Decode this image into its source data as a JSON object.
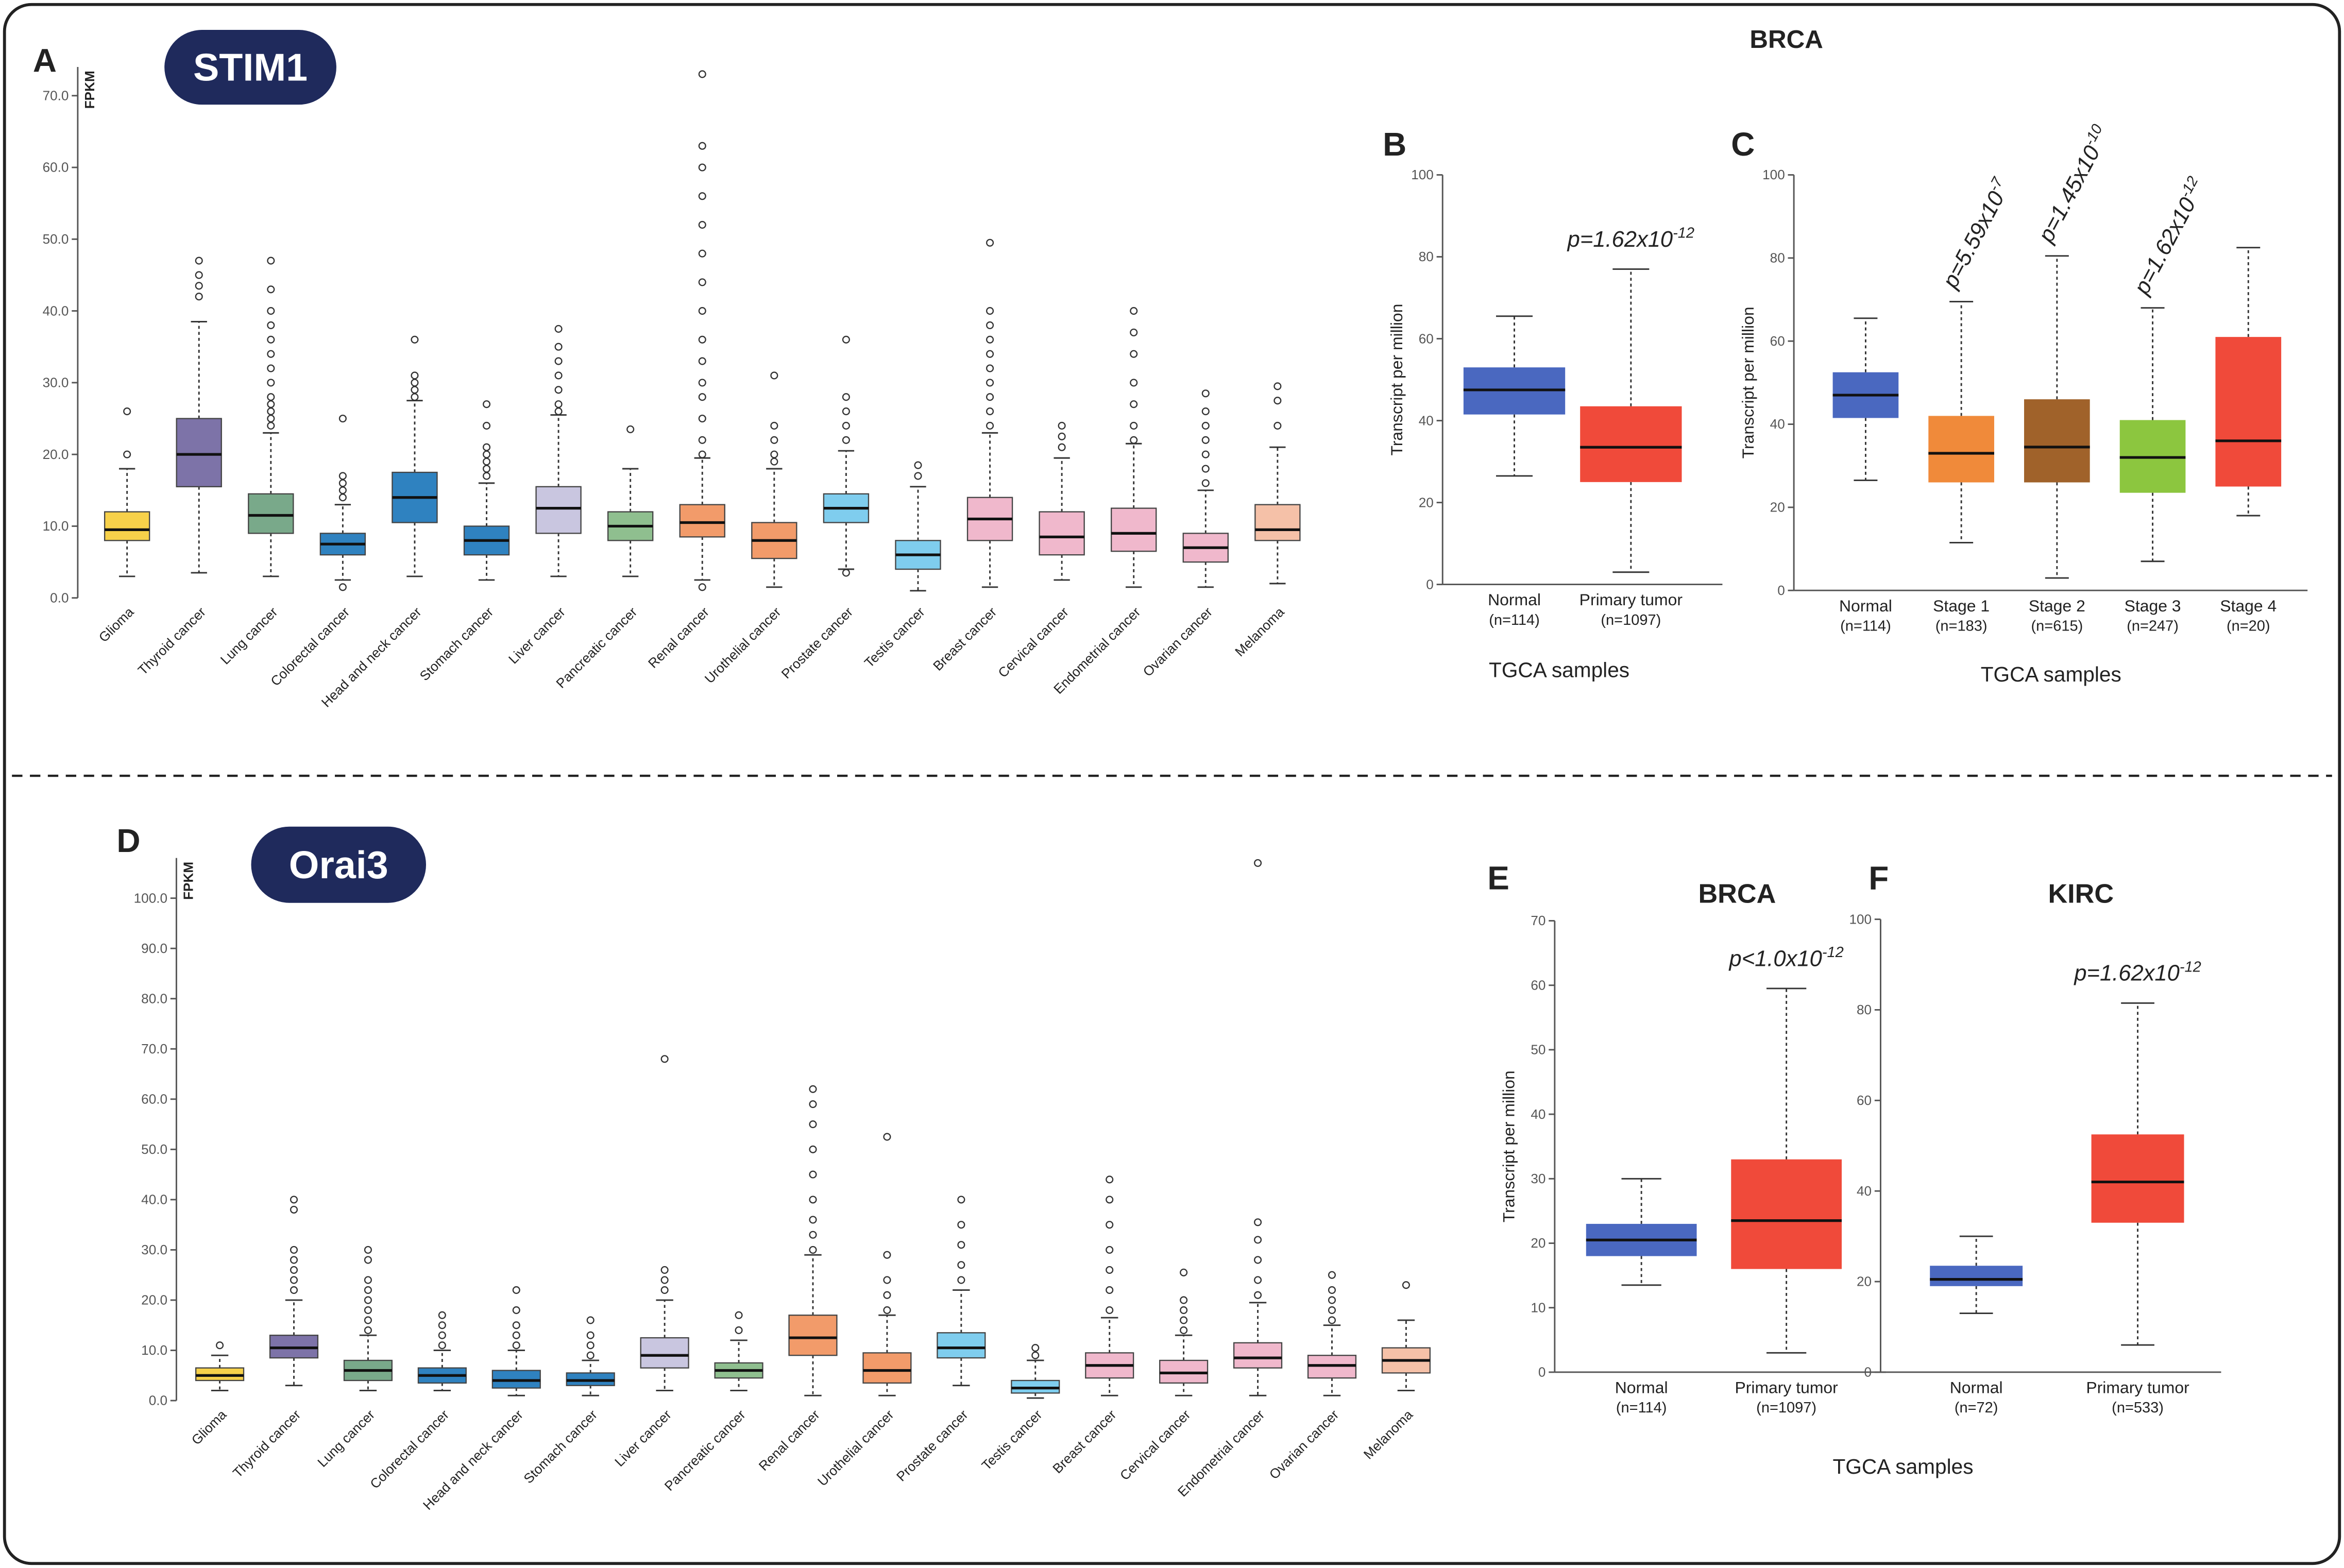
{
  "header": "BRCA",
  "chart_data": [
    {
      "type": "box",
      "panel": "A",
      "gene": "STIM1",
      "ylabel": "FPKM",
      "ylim": [
        0,
        74
      ],
      "yticks": [
        {
          "value": 0,
          "label": "0.0"
        },
        {
          "value": 10,
          "label": "10.0"
        },
        {
          "value": 20,
          "label": "20.0"
        },
        {
          "value": 30,
          "label": "30.0"
        },
        {
          "value": 40,
          "label": "40.0"
        },
        {
          "value": 50,
          "label": "50.0"
        },
        {
          "value": 60,
          "label": "60.0"
        },
        {
          "value": 70,
          "label": "70.0"
        }
      ],
      "categories": [
        "Glioma",
        "Thyroid cancer",
        "Lung cancer",
        "Colorectal cancer",
        "Head and neck cancer",
        "Stomach cancer",
        "Liver cancer",
        "Pancreatic cancer",
        "Renal cancer",
        "Urothelial cancer",
        "Prostate cancer",
        "Testis cancer",
        "Breast cancer",
        "Cervical cancer",
        "Endometrial cancer",
        "Ovarian cancer",
        "Melanoma"
      ],
      "boxes": [
        {
          "min": 3,
          "q1": 8,
          "median": 9.5,
          "q3": 12,
          "max": 18,
          "outliers": [
            20,
            26
          ],
          "color": "#f7d14a"
        },
        {
          "min": 3.5,
          "q1": 15.5,
          "median": 20,
          "q3": 25,
          "max": 38.5,
          "outliers": [
            42,
            43.5,
            45,
            47
          ],
          "color": "#7d73a8"
        },
        {
          "min": 3,
          "q1": 9,
          "median": 11.5,
          "q3": 14.5,
          "max": 23,
          "outliers": [
            24,
            25,
            26,
            27,
            28,
            30,
            32,
            34,
            36,
            38,
            40,
            43,
            47
          ],
          "color": "#79a98a"
        },
        {
          "min": 2.5,
          "q1": 6,
          "median": 7.5,
          "q3": 9,
          "max": 13,
          "outliers": [
            1.5,
            14,
            15,
            16,
            17,
            25
          ],
          "color": "#2f82c0"
        },
        {
          "min": 3,
          "q1": 10.5,
          "median": 14,
          "q3": 17.5,
          "max": 27.5,
          "outliers": [
            28,
            29,
            30,
            31,
            36
          ],
          "color": "#2f82c0"
        },
        {
          "min": 2.5,
          "q1": 6,
          "median": 8,
          "q3": 10,
          "max": 16,
          "outliers": [
            17,
            18,
            19,
            20,
            21,
            24,
            27
          ],
          "color": "#2f82c0"
        },
        {
          "min": 3,
          "q1": 9,
          "median": 12.5,
          "q3": 15.5,
          "max": 25.5,
          "outliers": [
            26,
            27,
            29,
            31,
            33,
            35,
            37.5
          ],
          "color": "#c9c6e0"
        },
        {
          "min": 3,
          "q1": 8,
          "median": 10,
          "q3": 12,
          "max": 18,
          "outliers": [
            23.5
          ],
          "color": "#8fbf8f"
        },
        {
          "min": 2.5,
          "q1": 8.5,
          "median": 10.5,
          "q3": 13,
          "max": 19.5,
          "outliers": [
            1.5,
            20,
            22,
            25,
            28,
            30,
            33,
            36,
            40,
            44,
            48,
            52,
            56,
            60,
            63,
            73
          ],
          "color": "#f29b6a"
        },
        {
          "min": 1.5,
          "q1": 5.5,
          "median": 8,
          "q3": 10.5,
          "max": 18,
          "outliers": [
            19,
            20,
            22,
            24,
            31
          ],
          "color": "#f29b6a"
        },
        {
          "min": 4,
          "q1": 10.5,
          "median": 12.5,
          "q3": 14.5,
          "max": 20.5,
          "outliers": [
            3.5,
            22,
            24,
            26,
            28,
            36
          ],
          "color": "#7fcdee"
        },
        {
          "min": 1,
          "q1": 4,
          "median": 6,
          "q3": 8,
          "max": 15.5,
          "outliers": [
            17,
            18.5
          ],
          "color": "#7fcdee"
        },
        {
          "min": 1.5,
          "q1": 8,
          "median": 11,
          "q3": 14,
          "max": 23,
          "outliers": [
            24,
            26,
            28,
            30,
            32,
            34,
            36,
            38,
            40,
            49.5
          ],
          "color": "#f0b8cc"
        },
        {
          "min": 2.5,
          "q1": 6,
          "median": 8.5,
          "q3": 12,
          "max": 19.5,
          "outliers": [
            21,
            22.5,
            24
          ],
          "color": "#f0b8cc"
        },
        {
          "min": 1.5,
          "q1": 6.5,
          "median": 9,
          "q3": 12.5,
          "max": 21.5,
          "outliers": [
            22,
            24,
            27,
            30,
            34,
            37,
            40
          ],
          "color": "#f0b8cc"
        },
        {
          "min": 1.5,
          "q1": 5,
          "median": 7,
          "q3": 9,
          "max": 15,
          "outliers": [
            16,
            18,
            20,
            22,
            24,
            26,
            28.5
          ],
          "color": "#f0b8cc"
        },
        {
          "min": 2,
          "q1": 8,
          "median": 9.5,
          "q3": 13,
          "max": 21,
          "outliers": [
            24,
            27.5,
            29.5
          ],
          "color": "#f5c1a8"
        }
      ]
    },
    {
      "type": "box",
      "panel": "B",
      "ylabel": "Transcript per million",
      "xlabel": "TGCA samples",
      "ylim": [
        0,
        100
      ],
      "yticks": [
        0,
        20,
        40,
        60,
        80,
        100
      ],
      "categories": [
        "Normal",
        "Primary tumor"
      ],
      "counts": [
        "(n=114)",
        "(n=1097)"
      ],
      "boxes": [
        {
          "min": 26.5,
          "q1": 41.5,
          "median": 47.5,
          "q3": 53,
          "max": 65.5,
          "color": "#4a68c0"
        },
        {
          "min": 3,
          "q1": 25,
          "median": 33.5,
          "q3": 43.5,
          "max": 77,
          "color": "#f04a3a",
          "p": {
            "text": "p=1.62x10",
            "exp": "-12"
          }
        }
      ]
    },
    {
      "type": "box",
      "panel": "C",
      "ylabel": "Transcript per million",
      "xlabel": "TGCA samples",
      "ylim": [
        0,
        100
      ],
      "yticks": [
        0,
        20,
        40,
        60,
        80,
        100
      ],
      "categories": [
        "Normal",
        "Stage 1",
        "Stage 2",
        "Stage 3",
        "Stage 4"
      ],
      "counts": [
        "(n=114)",
        "(n=183)",
        "(n=615)",
        "(n=247)",
        "(n=20)"
      ],
      "boxes": [
        {
          "min": 26.5,
          "q1": 41.5,
          "median": 47,
          "q3": 52.5,
          "max": 65.5,
          "color": "#4a68c0"
        },
        {
          "min": 11.5,
          "q1": 26,
          "median": 33,
          "q3": 42,
          "max": 69.5,
          "color": "#f08a3a",
          "p": {
            "text": "p=5.59x10",
            "exp": "-7"
          }
        },
        {
          "min": 3,
          "q1": 26,
          "median": 34.5,
          "q3": 46,
          "max": 80.5,
          "color": "#a0622a",
          "p": {
            "text": "p=1.45x10",
            "exp": "-10"
          }
        },
        {
          "min": 7,
          "q1": 23.5,
          "median": 32,
          "q3": 41,
          "max": 68,
          "color": "#8cc63f",
          "p": {
            "text": "p=1.62x10",
            "exp": "-12"
          }
        },
        {
          "min": 18,
          "q1": 25,
          "median": 36,
          "q3": 61,
          "max": 82.5,
          "color": "#f04a3a"
        }
      ]
    },
    {
      "type": "box",
      "panel": "D",
      "gene": "Orai3",
      "ylabel": "FPKM",
      "ylim": [
        0,
        108
      ],
      "yticks": [
        {
          "value": 0,
          "label": "0.0"
        },
        {
          "value": 10,
          "label": "10.0"
        },
        {
          "value": 20,
          "label": "20.0"
        },
        {
          "value": 30,
          "label": "30.0"
        },
        {
          "value": 40,
          "label": "40.0"
        },
        {
          "value": 50,
          "label": "50.0"
        },
        {
          "value": 60,
          "label": "60.0"
        },
        {
          "value": 70,
          "label": "70.0"
        },
        {
          "value": 80,
          "label": "80.0"
        },
        {
          "value": 90,
          "label": "90.0"
        },
        {
          "value": 100,
          "label": "100.0"
        }
      ],
      "categories": [
        "Glioma",
        "Thyroid cancer",
        "Lung cancer",
        "Colorectal cancer",
        "Head and neck cancer",
        "Stomach cancer",
        "Liver cancer",
        "Pancreatic cancer",
        "Renal cancer",
        "Urothelial cancer",
        "Prostate cancer",
        "Testis cancer",
        "Breast cancer",
        "Cervical cancer",
        "Endometrial cancer",
        "Ovarian cancer",
        "Melanoma"
      ],
      "boxes": [
        {
          "min": 2,
          "q1": 4,
          "median": 5,
          "q3": 6.5,
          "max": 9,
          "outliers": [
            11
          ],
          "color": "#f7d14a"
        },
        {
          "min": 3,
          "q1": 8.5,
          "median": 10.5,
          "q3": 13,
          "max": 20,
          "outliers": [
            22,
            24,
            26,
            28,
            30,
            38,
            40
          ],
          "color": "#7d73a8"
        },
        {
          "min": 2,
          "q1": 4,
          "median": 6,
          "q3": 8,
          "max": 13,
          "outliers": [
            14,
            16,
            18,
            20,
            22,
            24,
            28,
            30
          ],
          "color": "#79a98a"
        },
        {
          "min": 2,
          "q1": 3.5,
          "median": 5,
          "q3": 6.5,
          "max": 10,
          "outliers": [
            11,
            13,
            15,
            17
          ],
          "color": "#2f82c0"
        },
        {
          "min": 1,
          "q1": 2.5,
          "median": 4,
          "q3": 6,
          "max": 10,
          "outliers": [
            11,
            13,
            15,
            18,
            22
          ],
          "color": "#2f82c0"
        },
        {
          "min": 1,
          "q1": 3,
          "median": 4,
          "q3": 5.5,
          "max": 8,
          "outliers": [
            9,
            11,
            13,
            16
          ],
          "color": "#2f82c0"
        },
        {
          "min": 2,
          "q1": 6.5,
          "median": 9,
          "q3": 12.5,
          "max": 20,
          "outliers": [
            22,
            24,
            26,
            68
          ],
          "color": "#c9c6e0"
        },
        {
          "min": 2,
          "q1": 4.5,
          "median": 6,
          "q3": 7.5,
          "max": 12,
          "outliers": [
            14,
            17
          ],
          "color": "#8fbf8f"
        },
        {
          "min": 1,
          "q1": 9,
          "median": 12.5,
          "q3": 17,
          "max": 29,
          "outliers": [
            30,
            33,
            36,
            40,
            45,
            50,
            55,
            59,
            62
          ],
          "color": "#f29b6a"
        },
        {
          "min": 1,
          "q1": 3.5,
          "median": 6,
          "q3": 9.5,
          "max": 17,
          "outliers": [
            18,
            21,
            24,
            29,
            52.5
          ],
          "color": "#f29b6a"
        },
        {
          "min": 3,
          "q1": 8.5,
          "median": 10.5,
          "q3": 13.5,
          "max": 22,
          "outliers": [
            24,
            27,
            31,
            35,
            40
          ],
          "color": "#7fcdee"
        },
        {
          "min": 0.5,
          "q1": 1.5,
          "median": 2.5,
          "q3": 4,
          "max": 8,
          "outliers": [
            9,
            10.5
          ],
          "color": "#7fcdee"
        },
        {
          "min": 1,
          "q1": 4.5,
          "median": 7,
          "q3": 9.5,
          "max": 16.5,
          "outliers": [
            18,
            22,
            26,
            30,
            35,
            40,
            44
          ],
          "color": "#f0b8cc"
        },
        {
          "min": 1,
          "q1": 3.5,
          "median": 5.5,
          "q3": 8,
          "max": 13,
          "outliers": [
            14,
            16,
            18,
            20,
            25.5
          ],
          "color": "#f0b8cc"
        },
        {
          "min": 1,
          "q1": 6.5,
          "median": 8.5,
          "q3": 11.5,
          "max": 19.5,
          "outliers": [
            21,
            24,
            28,
            32,
            35.5,
            107
          ],
          "color": "#f0b8cc"
        },
        {
          "min": 1,
          "q1": 4.5,
          "median": 7,
          "q3": 9,
          "max": 15,
          "outliers": [
            16,
            18,
            20,
            22,
            25
          ],
          "color": "#f0b8cc"
        },
        {
          "min": 2,
          "q1": 5.5,
          "median": 8,
          "q3": 10.5,
          "max": 16,
          "outliers": [
            23
          ],
          "color": "#f5c1a8"
        }
      ]
    },
    {
      "type": "box",
      "panel": "E",
      "title": "BRCA",
      "ylabel": "Transcript per million",
      "ylim": [
        0,
        70
      ],
      "yticks": [
        0,
        10,
        20,
        30,
        40,
        50,
        60,
        70
      ],
      "categories": [
        "Normal",
        "Primary tumor"
      ],
      "counts": [
        "(n=114)",
        "(n=1097)"
      ],
      "boxes": [
        {
          "min": 13.5,
          "q1": 18,
          "median": 20.5,
          "q3": 23,
          "max": 30,
          "color": "#4a68c0"
        },
        {
          "min": 3,
          "q1": 16,
          "median": 23.5,
          "q3": 33,
          "max": 59.5,
          "color": "#f04a3a",
          "p": {
            "text": "p<1.0x10",
            "exp": "-12"
          }
        }
      ]
    },
    {
      "type": "box",
      "panel": "F",
      "title": "KIRC",
      "xlabel": "TGCA samples",
      "ylim": [
        0,
        100
      ],
      "yticks": [
        0,
        20,
        40,
        60,
        80,
        100
      ],
      "categories": [
        "Normal",
        "Primary tumor"
      ],
      "counts": [
        "(n=72)",
        "(n=533)"
      ],
      "boxes": [
        {
          "min": 13,
          "q1": 19,
          "median": 20.5,
          "q3": 23.5,
          "max": 30,
          "color": "#4a68c0"
        },
        {
          "min": 6,
          "q1": 33,
          "median": 42,
          "q3": 52.5,
          "max": 81.5,
          "color": "#f04a3a",
          "p": {
            "text": "p=1.62x10",
            "exp": "-12"
          }
        }
      ]
    }
  ]
}
